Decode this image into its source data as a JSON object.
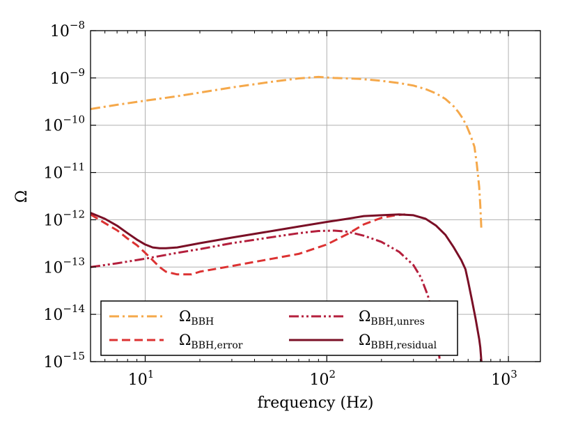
{
  "chart_data": {
    "type": "line",
    "title": "",
    "xlabel": "frequency (Hz)",
    "ylabel": "Ω",
    "xscale": "log",
    "yscale": "log",
    "xlim": [
      5,
      1500
    ],
    "ylim": [
      1e-15,
      1e-08
    ],
    "grid": true,
    "legend_position": "lower-center",
    "x_ticks": [
      {
        "value": 10,
        "base": "10",
        "exp": "1"
      },
      {
        "value": 100,
        "base": "10",
        "exp": "2"
      },
      {
        "value": 1000,
        "base": "10",
        "exp": "3"
      }
    ],
    "y_ticks": [
      {
        "value": 1e-08,
        "base": "10",
        "exp": "−8"
      },
      {
        "value": 1e-09,
        "base": "10",
        "exp": "−9"
      },
      {
        "value": 1e-10,
        "base": "10",
        "exp": "−10"
      },
      {
        "value": 1e-11,
        "base": "10",
        "exp": "−11"
      },
      {
        "value": 1e-12,
        "base": "10",
        "exp": "−12"
      },
      {
        "value": 1e-13,
        "base": "10",
        "exp": "−13"
      },
      {
        "value": 1e-14,
        "base": "10",
        "exp": "−14"
      },
      {
        "value": 1e-15,
        "base": "10",
        "exp": "−15"
      }
    ],
    "series": [
      {
        "name": "Ω_BBH",
        "label_main": "Ω",
        "label_sub": "BBH",
        "color": "#f5a84a",
        "dash": "dashdot",
        "x": [
          5,
          7,
          10,
          15,
          20,
          30,
          50,
          70,
          90,
          110,
          150,
          200,
          250,
          300,
          350,
          400,
          450,
          500,
          530,
          560,
          590,
          620,
          650,
          670,
          690,
          700,
          710
        ],
        "y": [
          2.2e-10,
          2.7e-10,
          3.3e-10,
          4.1e-10,
          4.9e-10,
          6.3e-10,
          8.3e-10,
          9.8e-10,
          1.05e-09,
          1e-09,
          9.6e-10,
          8.7e-10,
          7.8e-10,
          6.9e-10,
          5.8e-10,
          4.7e-10,
          3.6e-10,
          2.5e-10,
          1.9e-10,
          1.4e-10,
          9.5e-11,
          6e-11,
          3.5e-11,
          1.5e-11,
          5e-12,
          2e-12,
          6e-13
        ]
      },
      {
        "name": "Ω_BBH,error",
        "label_main": "Ω",
        "label_sub": "BBH,error",
        "color": "#dc3232",
        "dash": "dashed",
        "x": [
          5,
          6,
          7,
          8,
          9,
          10,
          11,
          12,
          13,
          15,
          18,
          20,
          30,
          50,
          70,
          100,
          130,
          160,
          200,
          240,
          270
        ],
        "y": [
          1.3e-12,
          8.5e-13,
          6e-13,
          4e-13,
          2.9e-13,
          2e-13,
          1.4e-13,
          1e-13,
          8e-14,
          7e-14,
          7e-14,
          8e-14,
          1.05e-13,
          1.5e-13,
          1.9e-13,
          3e-13,
          5e-13,
          8e-13,
          1.1e-12,
          1.25e-12,
          1.3e-12
        ]
      },
      {
        "name": "Ω_BBH,unres",
        "label_main": "Ω",
        "label_sub": "BBH,unres",
        "color": "#b41f3c",
        "dash": "dashdotdot",
        "x": [
          5,
          7,
          10,
          15,
          20,
          30,
          50,
          70,
          90,
          110,
          130,
          160,
          200,
          250,
          300,
          330,
          360,
          380,
          400,
          420
        ],
        "y": [
          1e-13,
          1.2e-13,
          1.5e-13,
          2e-13,
          2.4e-13,
          3.2e-13,
          4.3e-13,
          5.2e-13,
          5.8e-13,
          5.9e-13,
          5.6e-13,
          4.6e-13,
          3.4e-13,
          2.1e-13,
          1.1e-13,
          6e-14,
          2.5e-14,
          1e-14,
          4e-15,
          1e-15
        ]
      },
      {
        "name": "Ω_BBH,residual",
        "label_main": "Ω",
        "label_sub": "BBH,residual",
        "color": "#7a0f26",
        "dash": "solid",
        "x": [
          5,
          6,
          7,
          8,
          9,
          10,
          11,
          12,
          13,
          15,
          20,
          30,
          50,
          70,
          100,
          130,
          160,
          200,
          250,
          300,
          350,
          400,
          450,
          500,
          550,
          580,
          600,
          630,
          660,
          690,
          700,
          710
        ],
        "y": [
          1.4e-12,
          1.05e-12,
          7.5e-13,
          5.2e-13,
          3.8e-13,
          3e-13,
          2.6e-13,
          2.5e-13,
          2.5e-13,
          2.6e-13,
          3.2e-13,
          4.2e-13,
          5.8e-13,
          7.2e-13,
          9e-13,
          1.05e-12,
          1.2e-12,
          1.25e-12,
          1.3e-12,
          1.25e-12,
          1.05e-12,
          7.5e-13,
          4.8e-13,
          2.6e-13,
          1.4e-13,
          9e-14,
          5e-14,
          2e-14,
          8e-15,
          3e-15,
          2e-15,
          1e-15
        ]
      }
    ]
  }
}
